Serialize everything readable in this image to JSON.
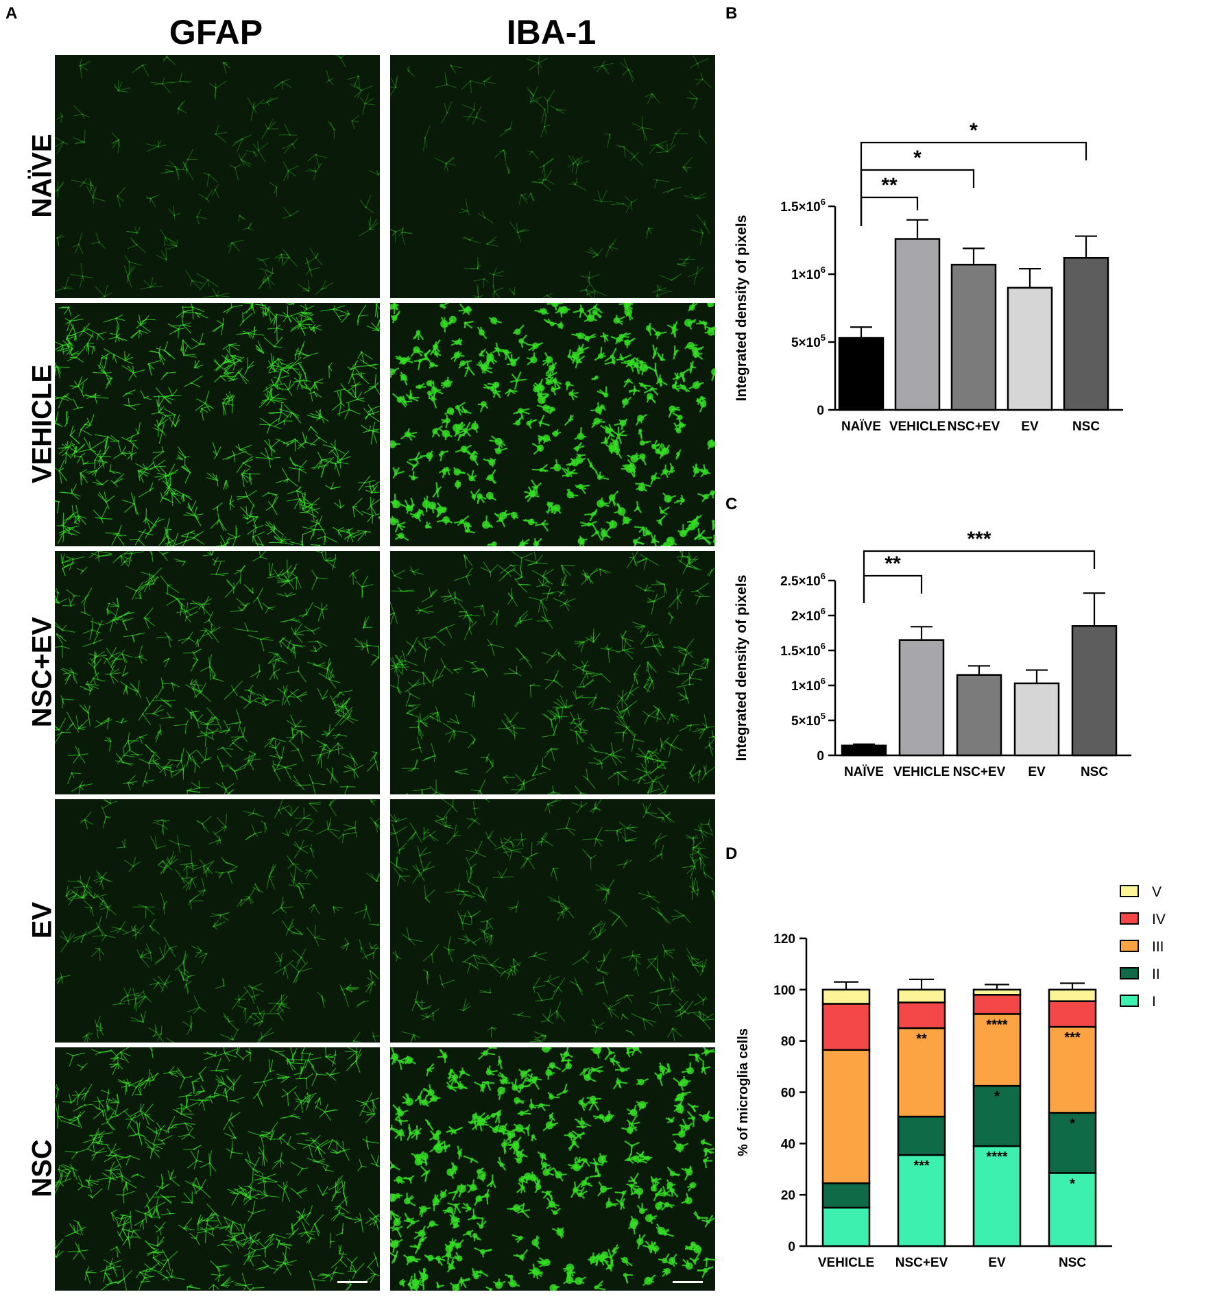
{
  "panel_a": {
    "letter": "A",
    "columns": [
      "GFAP",
      "IBA-1"
    ],
    "rows": [
      "NAÏVE",
      "VEHICLE",
      "NSC+EV",
      "EV",
      "NSC"
    ],
    "images": [
      {
        "name": "gfap-naive",
        "intensity": 0.18,
        "style": "thin"
      },
      {
        "name": "iba1-naive",
        "intensity": 0.15,
        "style": "thin"
      },
      {
        "name": "gfap-vehicle",
        "intensity": 0.95,
        "style": "thin"
      },
      {
        "name": "iba1-vehicle",
        "intensity": 1.0,
        "style": "blob"
      },
      {
        "name": "gfap-nsc-ev",
        "intensity": 0.7,
        "style": "thin"
      },
      {
        "name": "iba1-nsc-ev",
        "intensity": 0.55,
        "style": "thin"
      },
      {
        "name": "gfap-ev",
        "intensity": 0.4,
        "style": "thin"
      },
      {
        "name": "iba1-ev",
        "intensity": 0.4,
        "style": "thin"
      },
      {
        "name": "gfap-nsc",
        "intensity": 0.85,
        "style": "thin"
      },
      {
        "name": "iba1-nsc",
        "intensity": 1.0,
        "style": "blob"
      }
    ],
    "colors": {
      "background": "#0a1a08",
      "signal": "#33dd22"
    }
  },
  "chart_data": [
    {
      "panel": "B",
      "type": "bar",
      "categories": [
        "NAÏVE",
        "VEHICLE",
        "NSC+EV",
        "EV",
        "NSC"
      ],
      "values": [
        530000,
        1260000,
        1070000,
        900000,
        1120000
      ],
      "errors": [
        80000,
        140000,
        120000,
        140000,
        160000
      ],
      "colors": [
        "#000000",
        "#a7a6ab",
        "#7b7b7b",
        "#d6d6d6",
        "#5d5d5d"
      ],
      "ylabel": "Integrated density of pixels",
      "ylim": [
        0,
        1500000
      ],
      "yticks": [
        0,
        500000,
        1000000,
        1500000
      ],
      "ytick_labels": [
        "0",
        "5×10",
        "1×10",
        "1.5×10"
      ],
      "ytick_exponents": [
        "",
        "5",
        "6",
        "6"
      ],
      "significance": [
        {
          "from": 0,
          "to": 1,
          "label": "**",
          "level": 1
        },
        {
          "from": 0,
          "to": 2,
          "label": "*",
          "level": 2
        },
        {
          "from": 0,
          "to": 4,
          "label": "*",
          "level": 3
        }
      ]
    },
    {
      "panel": "C",
      "type": "bar",
      "categories": [
        "NAÏVE",
        "VEHICLE",
        "NSC+EV",
        "EV",
        "NSC"
      ],
      "values": [
        140000,
        1650000,
        1150000,
        1030000,
        1850000
      ],
      "errors": [
        20000,
        190000,
        130000,
        190000,
        470000
      ],
      "colors": [
        "#000000",
        "#a7a6ab",
        "#7b7b7b",
        "#d6d6d6",
        "#5d5d5d"
      ],
      "ylabel": "Integrated density of pixels",
      "ylim": [
        0,
        2500000
      ],
      "yticks": [
        0,
        500000,
        1000000,
        1500000,
        2000000,
        2500000
      ],
      "ytick_labels": [
        "0",
        "5×10",
        "1×10",
        "1.5×10",
        "2×10",
        "2.5×10"
      ],
      "ytick_exponents": [
        "",
        "5",
        "6",
        "6",
        "6",
        "6"
      ],
      "significance": [
        {
          "from": 0,
          "to": 1,
          "label": "**",
          "level": 1
        },
        {
          "from": 0,
          "to": 4,
          "label": "***",
          "level": 2
        }
      ]
    },
    {
      "panel": "D",
      "type": "bar",
      "stacked": true,
      "categories": [
        "VEHICLE",
        "NSC+EV",
        "EV",
        "NSC"
      ],
      "ylabel": "% of microglia cells",
      "ylim": [
        0,
        120
      ],
      "yticks": [
        0,
        20,
        40,
        60,
        80,
        100,
        120
      ],
      "legend_position": "top-right",
      "series": [
        {
          "name": "I",
          "color": "#3ef0b0",
          "values": [
            15,
            35.5,
            39,
            28.5
          ],
          "errors": [
            5,
            10,
            7.5,
            6.5
          ],
          "stars": [
            "",
            "***",
            "****",
            "*"
          ]
        },
        {
          "name": "II",
          "color": "#0f6a48",
          "values": [
            9.5,
            15,
            23.5,
            23.5
          ],
          "errors": [
            7.5,
            6,
            4.5,
            4.5
          ],
          "stars": [
            "",
            "",
            "*",
            "*"
          ]
        },
        {
          "name": "III",
          "color": "#fca443",
          "values": [
            52,
            34.5,
            28,
            33.5
          ],
          "errors": [
            3,
            7.5,
            7.5,
            3
          ],
          "stars": [
            "",
            "**",
            "****",
            "***"
          ]
        },
        {
          "name": "IV",
          "color": "#f44848",
          "values": [
            18,
            10,
            7.5,
            10
          ],
          "errors": [
            0,
            0,
            0,
            0
          ],
          "stars": [
            "",
            "",
            "",
            ""
          ]
        },
        {
          "name": "V",
          "color": "#fdf497",
          "values": [
            5.5,
            5,
            2,
            4.5
          ],
          "errors": [
            3,
            4,
            2,
            2.5
          ],
          "stars": [
            "",
            "",
            "",
            ""
          ]
        }
      ]
    }
  ]
}
